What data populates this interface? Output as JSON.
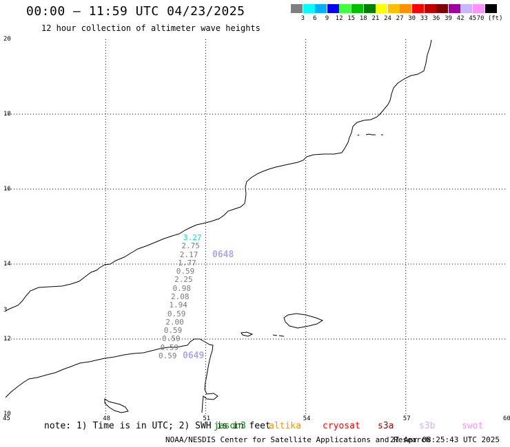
{
  "title": "00:00 – 11:59 UTC 04/23/2025",
  "subtitle": "12 hour collection of altimeter wave heights",
  "colorbar": {
    "labels": [
      "3",
      "6",
      "9",
      "12",
      "15",
      "18",
      "21",
      "24",
      "27",
      "30",
      "33",
      "36",
      "39",
      "42",
      "45",
      "70 (ft)"
    ],
    "colors": [
      "#7f7f7f",
      "#00ffff",
      "#00b0ff",
      "#0000ff",
      "#40ff40",
      "#00c000",
      "#008000",
      "#ffff00",
      "#ffc000",
      "#ff9000",
      "#ff0000",
      "#c00000",
      "#800000",
      "#a000a0",
      "#c8b4ff",
      "#ff90ff",
      "#000000"
    ]
  },
  "axes": {
    "y_ticks": [
      "20",
      "18",
      "16",
      "14",
      "12",
      "10"
    ],
    "x_ticks": [
      "45",
      "48",
      "51",
      "54",
      "57",
      "60"
    ],
    "y_extra_tick": "3",
    "grid": "dotted"
  },
  "swh_values": [
    "3.27",
    "2.75",
    "2.17",
    "1.77",
    "0.59",
    "2.25",
    "0.98",
    "2.08",
    "1.94",
    "0.59",
    "2.00",
    "0.59",
    "0.59",
    "0.59",
    "0.59"
  ],
  "swh_colors": [
    "#00dede",
    "#7a7a7a"
  ],
  "pass_ids": [
    "0648",
    "0649"
  ],
  "note": "note: 1) Time is in UTC; 2) SWH is in feet",
  "satellites": [
    {
      "name": "jason3",
      "color": "#009000"
    },
    {
      "name": "altika",
      "color": "#ff9000"
    },
    {
      "name": "cryosat",
      "color": "#ff0000"
    },
    {
      "name": "s3a",
      "color": "#a00000"
    },
    {
      "name": "s3b",
      "color": "#c8b4ff"
    },
    {
      "name": "swot",
      "color": "#ff90ff"
    }
  ],
  "footer": {
    "agency": "NOAA/NESDIS Center for Satellite Applications and Research",
    "timestamp": "27 Apr 08:25:43 UTC 2025"
  }
}
